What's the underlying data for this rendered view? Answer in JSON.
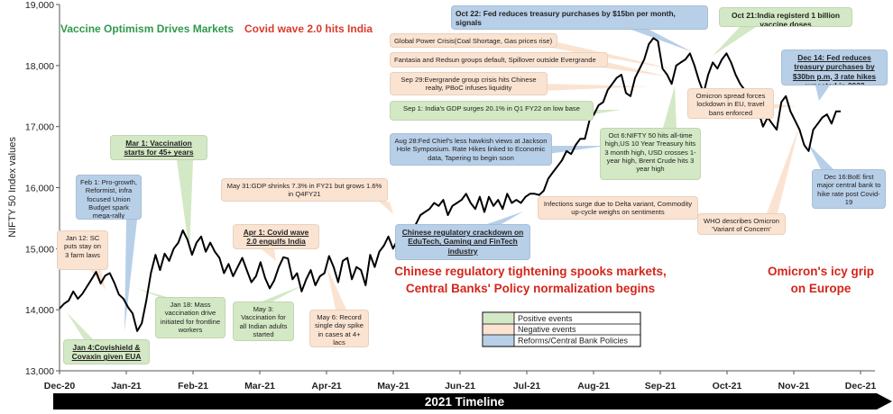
{
  "chart_data": {
    "type": "line",
    "ylabel": "NIFTY 50 Index values",
    "xlabel": "2021 Timeline",
    "ylim": [
      13000,
      19000
    ],
    "yticks": [
      "13,000",
      "14,000",
      "15,000",
      "16,000",
      "17,000",
      "18,000",
      "19,000"
    ],
    "x_ticks": [
      "Dec-20",
      "Jan-21",
      "Feb-21",
      "Mar-21",
      "Apr-21",
      "May-21",
      "Jun-21",
      "Jul-21",
      "Aug-21",
      "Sep-21",
      "Oct-21",
      "Nov-21",
      "Dec-21"
    ],
    "series": [
      {
        "values": [
          14020,
          14100,
          14150,
          14300,
          14180,
          14260,
          14380,
          14500,
          14620,
          14430,
          14560,
          14600,
          14440,
          14250,
          14180,
          14040,
          13940,
          13650,
          13780,
          14150,
          14600,
          14900,
          14650,
          14920,
          14800,
          15000,
          15100,
          15300,
          15150,
          14900,
          15100,
          15200,
          14950,
          15100,
          14950,
          14850,
          14600,
          14750,
          14550,
          14700,
          14850,
          14650,
          14450,
          14550,
          14780,
          14520,
          14350,
          14480,
          14700,
          14860,
          14840,
          14500,
          14600,
          14300,
          14500,
          14650,
          14400,
          14550,
          14600,
          14880,
          14700,
          14450,
          14800,
          14850,
          14500,
          14700,
          14650,
          14400,
          14900,
          14700,
          14950,
          15050,
          15200,
          15000,
          15150,
          15300,
          15350,
          15200,
          15400,
          15550,
          15600,
          15650,
          15750,
          15700,
          15800,
          15550,
          15700,
          15750,
          15800,
          15900,
          15750,
          15650,
          15850,
          15600,
          15850,
          15700,
          15800,
          15650,
          15900,
          15750,
          15800,
          15750,
          15850,
          15900,
          15900,
          15880,
          15950,
          16150,
          16250,
          16350,
          16450,
          16600,
          16550,
          16700,
          16800,
          16800,
          17100,
          17200,
          17350,
          17400,
          17600,
          17700,
          17800,
          17850,
          17550,
          17500,
          17800,
          17950,
          18100,
          18350,
          18450,
          18400,
          17950,
          17850,
          17700,
          18000,
          18050,
          18100,
          18200,
          18000,
          17750,
          17550,
          17850,
          18050,
          17950,
          18100,
          18200,
          18050,
          17850,
          17700,
          17600,
          17350,
          17500,
          17250,
          17000,
          17150,
          17050,
          16950,
          17400,
          17500,
          17250,
          17100,
          16950,
          16700,
          16600,
          16950,
          17050,
          17150,
          17200,
          17050,
          17250,
          17250
        ]
      }
    ],
    "legend": {
      "placement": "bottom-center",
      "items": [
        {
          "label": "Positive events",
          "color": "#d3e8c4"
        },
        {
          "label": "Negative events",
          "color": "#fbe3d1"
        },
        {
          "label": "Reforms/Central Bank Policies",
          "color": "#b8cfe8"
        }
      ]
    }
  },
  "headlines": {
    "vaccine_optimism": "Vaccine Optimism Drives Markets",
    "covid_wave": "Covid wave 2.0 hits India",
    "china_line1": "Chinese regulatory tightening spooks markets,",
    "china_line2": "Central Banks' Policy normalization begins",
    "omicron_line1": "Omicron's icy grip",
    "omicron_line2": "on Europe"
  },
  "annotations": {
    "jan4": "Jan 4:Covishield & Covaxin given EUA",
    "jan12": "Jan 12: SC puts stay on 3 farm laws",
    "feb1": "Feb 1: Pro-growth, Reformist, infra focused Union Budget spark mega-rally",
    "jan18": "Jan 18: Mass vaccination drive initiated for frontline workers",
    "mar1": "Mar 1: Vaccination starts for 45+ years category",
    "may31": "May 31:GDP shrinks 7.3% in FY21 but grows 1.6% in Q4FY21",
    "apr1": "Apr 1: Covid wave 2.0 engulfs India",
    "may3": "May 3: Vaccination for all Indian adults started",
    "may6": "May 6: Record single day spike in cases at 4+ lacs",
    "china_reg": "Chinese regulatory crackdown on EduTech, Gaming and FinTech industry",
    "oct22": "Oct 22: Fed reduces treasury purchases by $15bn per month, signals",
    "oct21": "Oct 21:India registerd 1 billion vaccine doses",
    "global_power": "Global Power Crisis(Coal Shortage, Gas prices rise)",
    "fantasia": "Fantasia and Redsun groups default, Spillover outside Evergrande",
    "sep29": "Sep 29:Evergrande group crisis hits Chinese realty, PBoC infuses liquidity",
    "sep1": "Sep 1: India's GDP surges 20.1% in Q1 FY22 on low base",
    "aug28": "Aug 28:Fed Chief's less hawkish views at Jackson Hole Symposium. Rate Hikes linked to Economic data, Tapering to begin soon",
    "oct6": "Oct 6:NIFTY 50 hits all-time high,US 10 Year Treasury hits 3 month high, USD crosses 1-year high, Brent Crude hits 3 year high",
    "infections": "Infections surge due to Delta variant, Commodity up-cycle weighs on sentiments",
    "dec14": "Dec 14: Fed reduces treasury purchases by $30bn p.m, 3 rate hikes expected in 2022",
    "omicron_spread": "Omicron spread forces lockdown in EU, travel bans enforced",
    "who": "WHO describes Omicron 'Variant of Concern'",
    "dec16": "Dec 16:BoE first major central bank to hike rate post Covid-19"
  },
  "colors": {
    "positive": "#d3e8c4",
    "negative": "#fbe3d1",
    "reform": "#b8cfe8",
    "line": "#000000",
    "timeline_bar": "#000000"
  }
}
